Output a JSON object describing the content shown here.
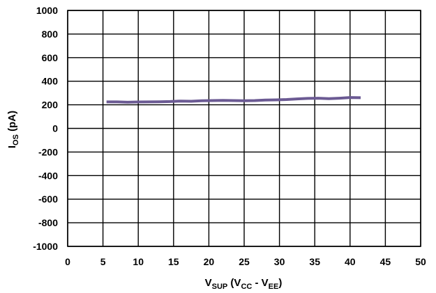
{
  "chart_data": {
    "type": "line",
    "xlabel": {
      "main": "V",
      "sub": "SUP",
      "mid1": " (V",
      "sub2": "CC",
      "mid2": " - V",
      "sub3": "EE",
      "end": ")"
    },
    "ylabel": {
      "main": "I",
      "sub": "OS",
      "end": " (pA)"
    },
    "xlim": [
      0,
      50
    ],
    "ylim": [
      -1000,
      1000
    ],
    "x_ticks": [
      "0",
      "5",
      "10",
      "15",
      "20",
      "25",
      "30",
      "35",
      "40",
      "45",
      "50"
    ],
    "y_ticks": [
      "1000",
      "800",
      "600",
      "400",
      "200",
      "0",
      "-200",
      "-400",
      "-600",
      "-800",
      "-1000"
    ],
    "grid": true,
    "series": [
      {
        "color": "#6b5a93",
        "x": [
          5.5,
          7,
          8.5,
          10,
          11.5,
          13,
          14.5,
          16,
          17.5,
          19,
          20.5,
          22,
          23.5,
          25,
          26.5,
          28,
          29.5,
          31,
          32.5,
          34,
          35.5,
          37,
          38.5,
          40,
          41.5
        ],
        "y": [
          225,
          225,
          222,
          224,
          225,
          226,
          228,
          232,
          230,
          234,
          236,
          238,
          236,
          234,
          236,
          240,
          242,
          245,
          250,
          254,
          256,
          252,
          256,
          262,
          260
        ]
      }
    ]
  }
}
